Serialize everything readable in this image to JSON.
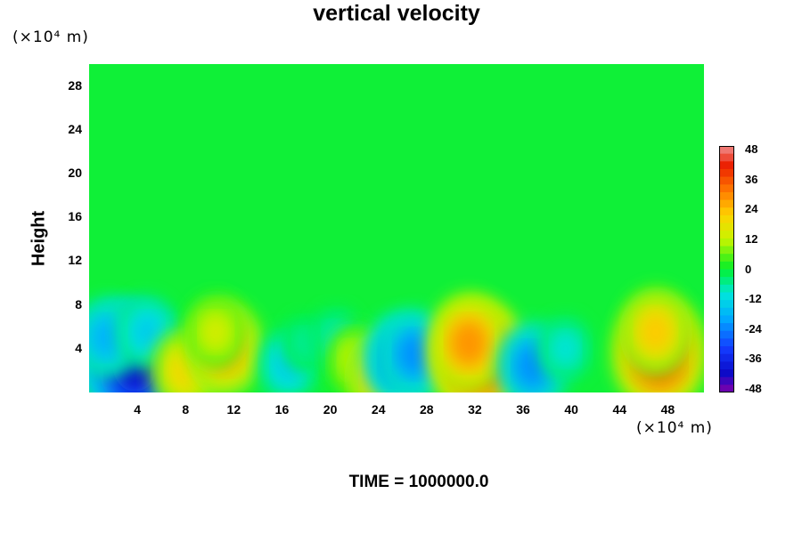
{
  "chart_data": {
    "type": "heatmap",
    "title": "vertical velocity",
    "ylabel": "Height",
    "xunit": "(×10⁴ m)",
    "yunit": "(×10⁴ m)",
    "footer": "TIME = 1000000.0",
    "xlim": [
      0,
      51
    ],
    "ylim": [
      0,
      30
    ],
    "xticks": [
      "4",
      "8",
      "12",
      "16",
      "20",
      "24",
      "28",
      "32",
      "36",
      "40",
      "44",
      "48"
    ],
    "yticks": [
      "4",
      "8",
      "12",
      "16",
      "20",
      "24",
      "28"
    ],
    "colorbar": {
      "range": [
        -48,
        48
      ],
      "ticks": [
        "48",
        "36",
        "24",
        "12",
        "0",
        "-12",
        "-24",
        "-36",
        "-48"
      ]
    },
    "features": [
      {
        "x": 2.5,
        "y": 3.5,
        "value": -30
      },
      {
        "x": 3.8,
        "y": 2.6,
        "value": -40
      },
      {
        "x": 1.5,
        "y": 5.0,
        "value": -18
      },
      {
        "x": 4.8,
        "y": 5.5,
        "value": -14
      },
      {
        "x": 8.0,
        "y": 2.0,
        "value": 20
      },
      {
        "x": 11.2,
        "y": 4.0,
        "value": 26
      },
      {
        "x": 10.5,
        "y": 5.5,
        "value": 14
      },
      {
        "x": 16.5,
        "y": 2.5,
        "value": -14
      },
      {
        "x": 18.0,
        "y": 4.5,
        "value": -6
      },
      {
        "x": 20.5,
        "y": 5.0,
        "value": -8
      },
      {
        "x": 22.0,
        "y": 3.0,
        "value": 12
      },
      {
        "x": 24.2,
        "y": 1.5,
        "value": 22
      },
      {
        "x": 25.8,
        "y": 3.0,
        "value": -24
      },
      {
        "x": 27.0,
        "y": 3.5,
        "value": -22
      },
      {
        "x": 32.3,
        "y": 3.0,
        "value": 38
      },
      {
        "x": 31.5,
        "y": 4.5,
        "value": 28
      },
      {
        "x": 36.8,
        "y": 2.4,
        "value": -22
      },
      {
        "x": 39.5,
        "y": 4.0,
        "value": -10
      },
      {
        "x": 47.3,
        "y": 3.5,
        "value": 36
      },
      {
        "x": 47.0,
        "y": 5.5,
        "value": 22
      }
    ]
  }
}
